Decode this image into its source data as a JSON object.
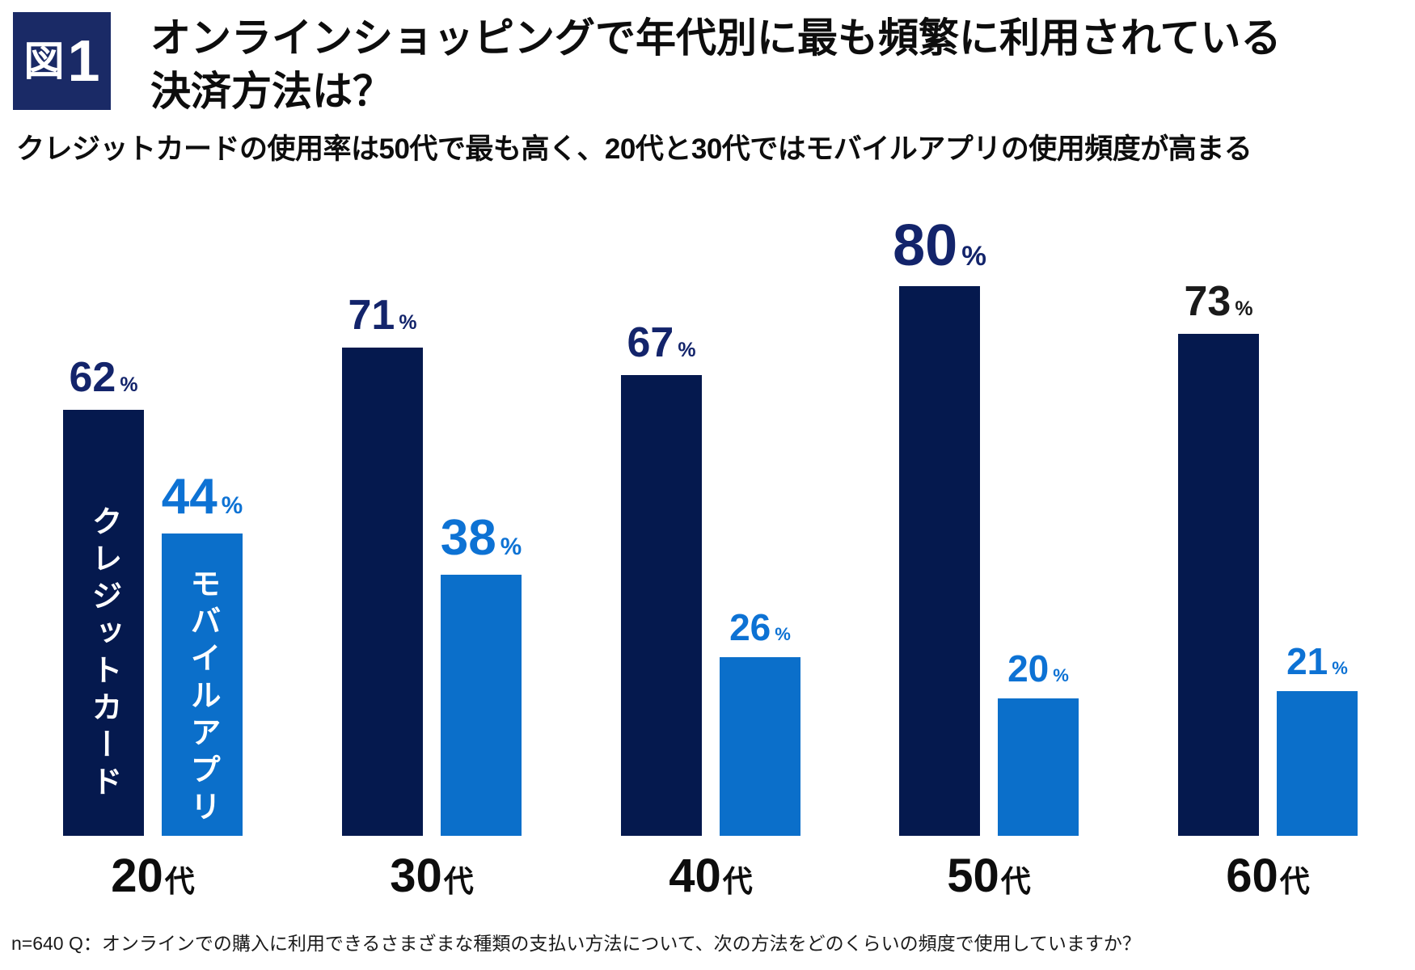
{
  "figure_badge": {
    "kanji": "図",
    "number": "1"
  },
  "title": {
    "line1": "オンラインショッピングで年代別に最も頻繁に利用されている",
    "line2": "決済方法は？"
  },
  "subtitle": "クレジットカードの使用率は50代で最も高く、20代と30代ではモバイルアプリの使用頻度が高まる",
  "footnote": "n=640 Q：オンラインでの購入に利用できるさまざまな種類の支払い方法について、次の方法をどのくらいの頻度で使用していますか？",
  "colors": {
    "navy_bar": "#05194e",
    "navy_label": "#13246b",
    "blue_bar": "#0b6fca",
    "blue_label": "#0d72d4",
    "black_label": "#1a1a1a",
    "badge_bg": "#1a2a66",
    "text": "#0d0d0d"
  },
  "chart_data": {
    "type": "bar",
    "title": "オンラインショッピングで年代別に最も頻繁に利用されている決済方法は？",
    "subtitle": "クレジットカードの使用率は50代で最も高く、20代と30代ではモバイルアプリの使用頻度が高まる",
    "categories": [
      "20代",
      "30代",
      "40代",
      "50代",
      "60代"
    ],
    "category_parts": [
      {
        "num": "20",
        "suffix": "代"
      },
      {
        "num": "30",
        "suffix": "代"
      },
      {
        "num": "40",
        "suffix": "代"
      },
      {
        "num": "50",
        "suffix": "代"
      },
      {
        "num": "60",
        "suffix": "代"
      }
    ],
    "unit": "%",
    "ylim": [
      0,
      85
    ],
    "grid": false,
    "legend_position": "inside-first-bars",
    "series": [
      {
        "name": "クレジットカード",
        "color": "#05194e",
        "label_color": "#13246b",
        "values": [
          62,
          71,
          67,
          80,
          73
        ],
        "points": [
          {
            "value": 62,
            "label": "62",
            "label_size": "normal"
          },
          {
            "value": 71,
            "label": "71",
            "label_size": "normal"
          },
          {
            "value": 67,
            "label": "67",
            "label_size": "normal"
          },
          {
            "value": 80,
            "label": "80",
            "label_size": "large"
          },
          {
            "value": 73,
            "label": "73",
            "label_size": "normal",
            "label_color": "#1a1a1a"
          }
        ]
      },
      {
        "name": "モバイルアプリ",
        "color": "#0b6fca",
        "label_color": "#0d72d4",
        "values": [
          44,
          38,
          26,
          20,
          21
        ],
        "points": [
          {
            "value": 44,
            "label": "44",
            "label_size": "large"
          },
          {
            "value": 38,
            "label": "38",
            "label_size": "large"
          },
          {
            "value": 26,
            "label": "26",
            "label_size": "small"
          },
          {
            "value": 20,
            "label": "20",
            "label_size": "small"
          },
          {
            "value": 21,
            "label": "21",
            "label_size": "small"
          }
        ]
      }
    ]
  }
}
